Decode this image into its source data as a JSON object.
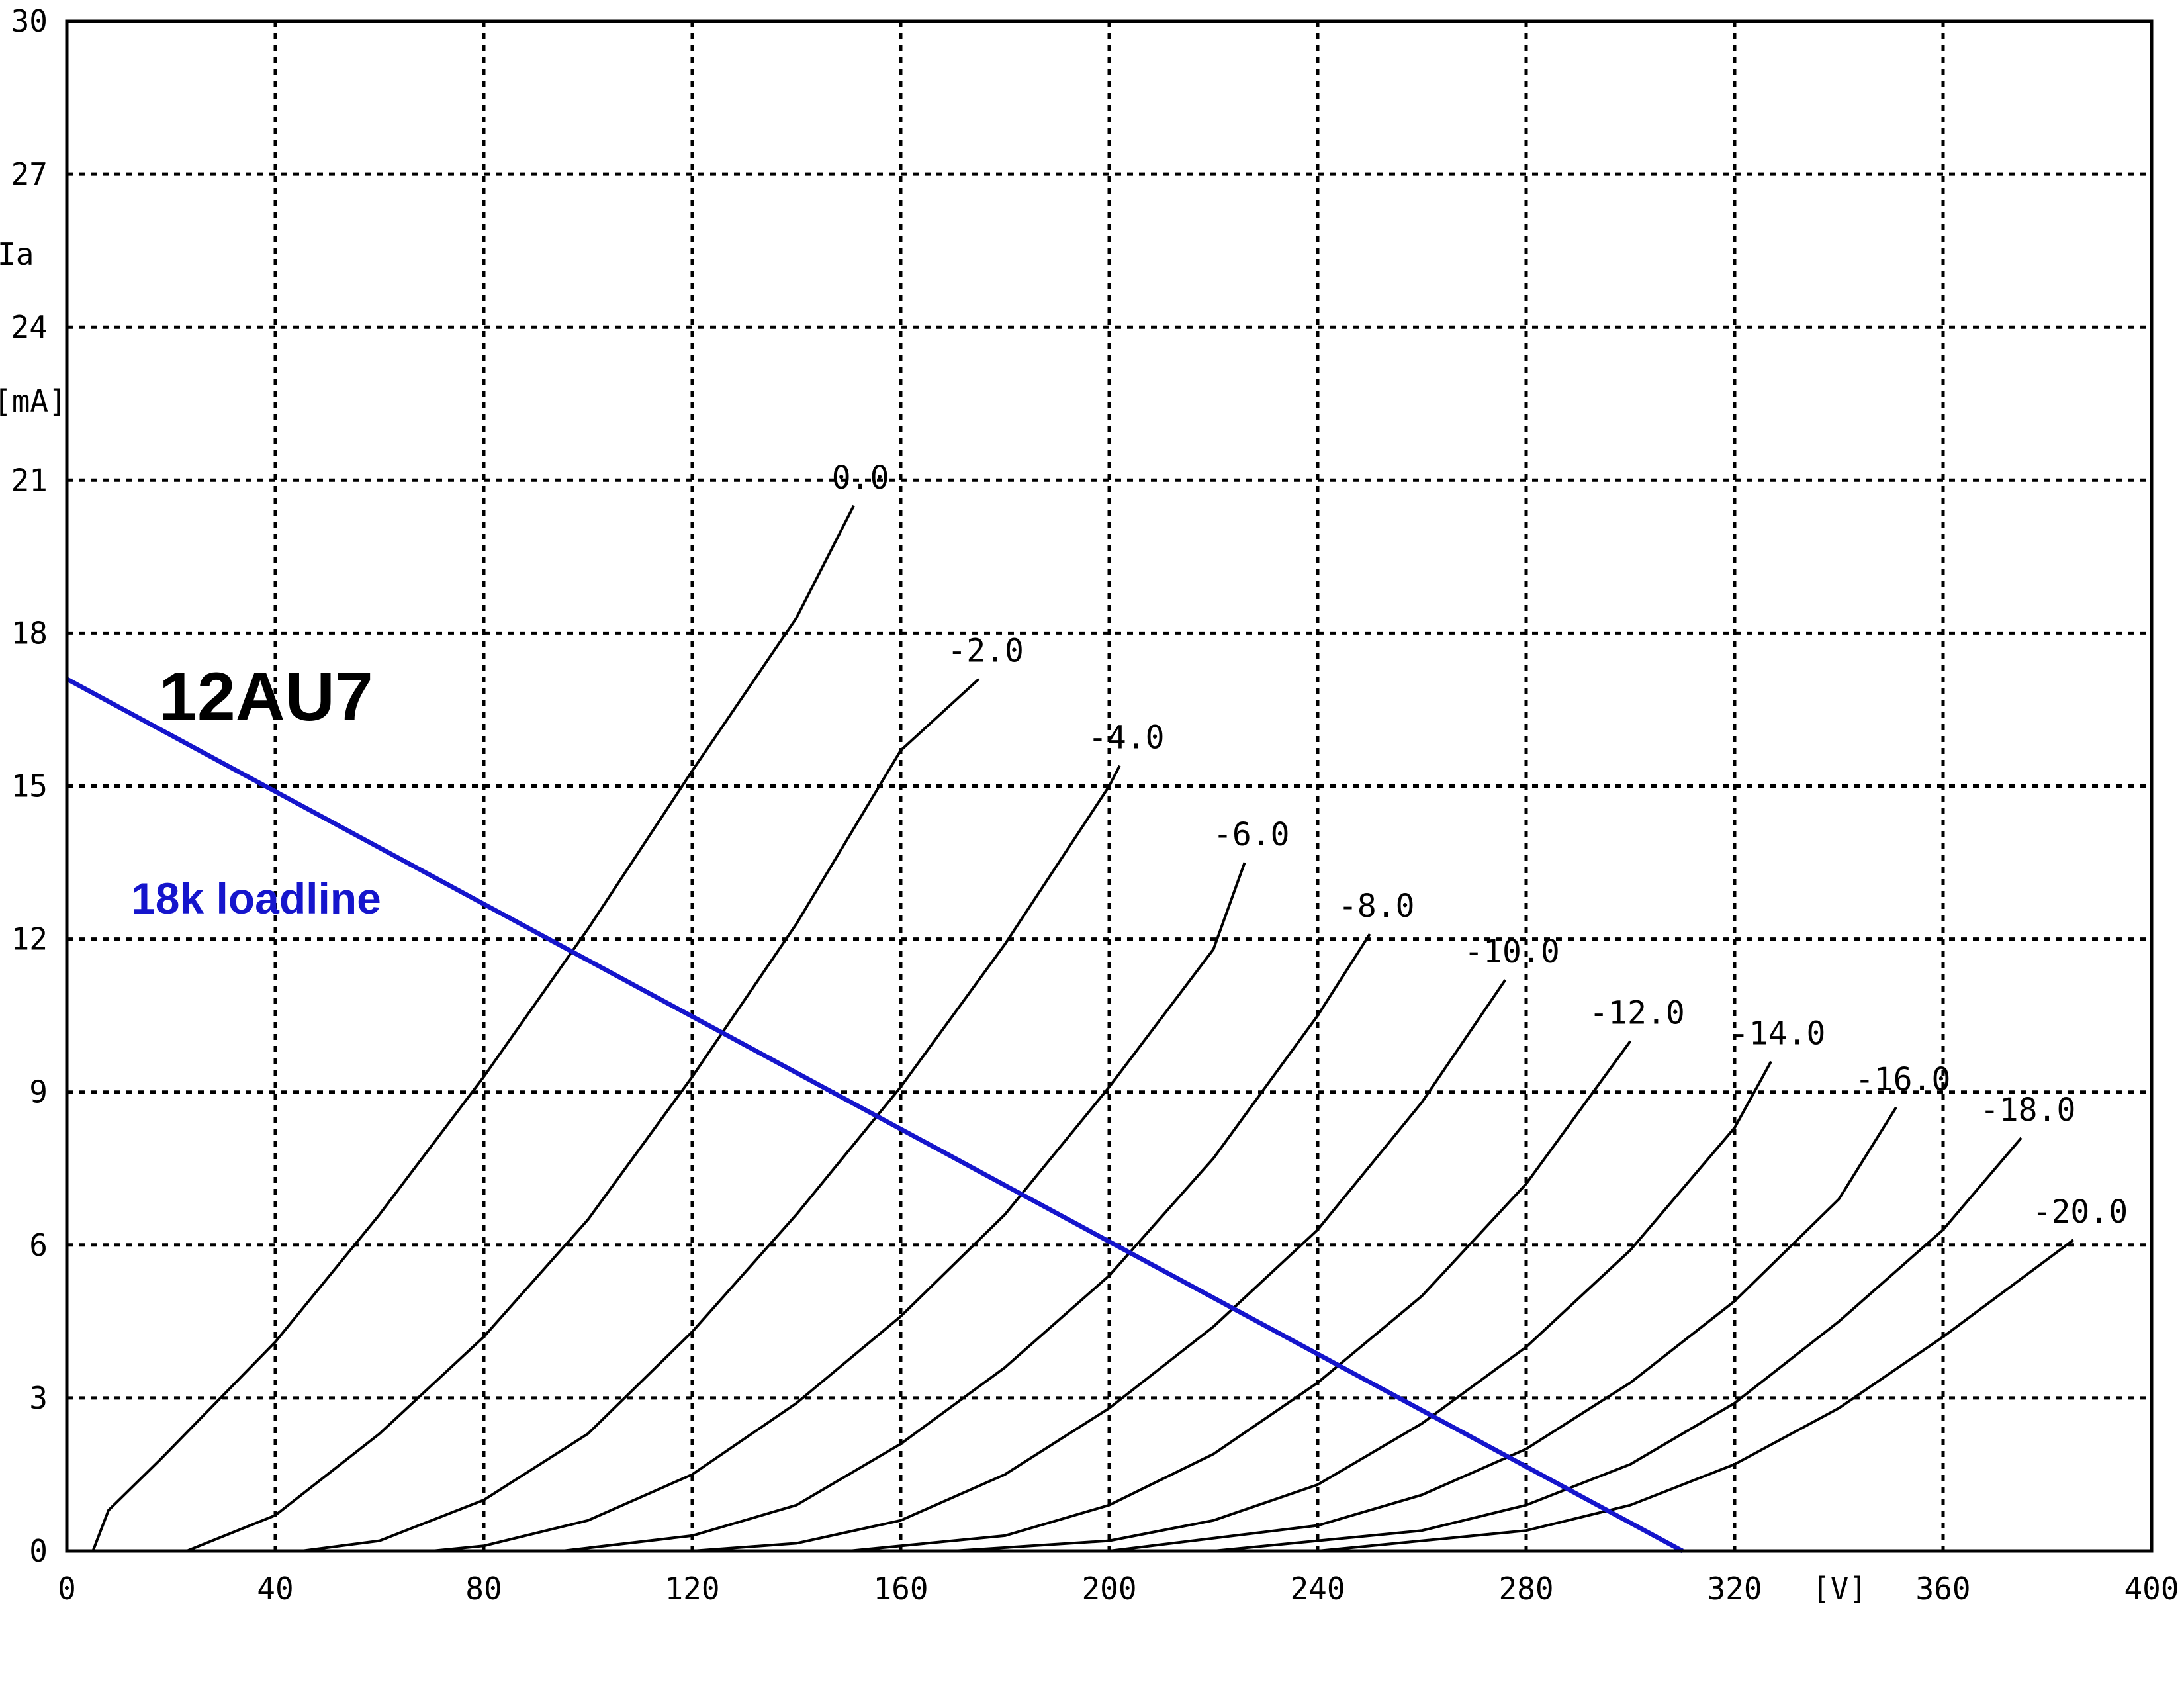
{
  "chart_data": {
    "type": "line",
    "title": "12AU7",
    "xlabel": "[V]",
    "ylabel": [
      "Ia",
      "[mA]"
    ],
    "xlim": [
      0,
      400
    ],
    "ylim": [
      0,
      30
    ],
    "grid": true,
    "x_ticks": [
      "0",
      "40",
      "80",
      "120",
      "160",
      "200",
      "240",
      "280",
      "320",
      "360",
      "400"
    ],
    "y_ticks": [
      "0",
      "3",
      "6",
      "9",
      "12",
      "15",
      "18",
      "21",
      "24",
      "27",
      "30"
    ],
    "series": [
      {
        "name": "0.0",
        "points": [
          [
            5,
            0
          ],
          [
            8,
            0.8
          ],
          [
            18,
            1.8
          ],
          [
            40,
            4.1
          ],
          [
            60,
            6.6
          ],
          [
            80,
            9.3
          ],
          [
            100,
            12.2
          ],
          [
            120,
            15.3
          ],
          [
            140,
            18.3
          ],
          [
            151,
            20.5
          ]
        ]
      },
      {
        "name": "-2.0",
        "points": [
          [
            23,
            0
          ],
          [
            40,
            0.7
          ],
          [
            60,
            2.3
          ],
          [
            80,
            4.2
          ],
          [
            100,
            6.5
          ],
          [
            120,
            9.3
          ],
          [
            140,
            12.3
          ],
          [
            160,
            15.7
          ],
          [
            175,
            17.1
          ]
        ]
      },
      {
        "name": "-4.0",
        "points": [
          [
            45,
            0
          ],
          [
            60,
            0.2
          ],
          [
            80,
            1.0
          ],
          [
            100,
            2.3
          ],
          [
            120,
            4.3
          ],
          [
            140,
            6.6
          ],
          [
            160,
            9.1
          ],
          [
            180,
            11.9
          ],
          [
            200,
            15.0
          ],
          [
            202,
            15.4
          ]
        ]
      },
      {
        "name": "-6.0",
        "points": [
          [
            70,
            0
          ],
          [
            80,
            0.1
          ],
          [
            100,
            0.6
          ],
          [
            120,
            1.5
          ],
          [
            140,
            2.9
          ],
          [
            160,
            4.6
          ],
          [
            180,
            6.6
          ],
          [
            200,
            9.1
          ],
          [
            220,
            11.8
          ],
          [
            226,
            13.5
          ]
        ]
      },
      {
        "name": "-8.0",
        "points": [
          [
            95,
            0
          ],
          [
            120,
            0.3
          ],
          [
            140,
            0.9
          ],
          [
            160,
            2.1
          ],
          [
            180,
            3.6
          ],
          [
            200,
            5.4
          ],
          [
            220,
            7.7
          ],
          [
            240,
            10.5
          ],
          [
            250,
            12.1
          ]
        ]
      },
      {
        "name": "-10.0",
        "points": [
          [
            120,
            0
          ],
          [
            140,
            0.15
          ],
          [
            160,
            0.6
          ],
          [
            180,
            1.5
          ],
          [
            200,
            2.8
          ],
          [
            220,
            4.4
          ],
          [
            240,
            6.3
          ],
          [
            260,
            8.8
          ],
          [
            276,
            11.2
          ]
        ]
      },
      {
        "name": "-12.0",
        "points": [
          [
            150,
            0
          ],
          [
            180,
            0.3
          ],
          [
            200,
            0.9
          ],
          [
            220,
            1.9
          ],
          [
            240,
            3.3
          ],
          [
            260,
            5.0
          ],
          [
            280,
            7.2
          ],
          [
            300,
            10.0
          ]
        ]
      },
      {
        "name": "-14.0",
        "points": [
          [
            170,
            0
          ],
          [
            200,
            0.2
          ],
          [
            220,
            0.6
          ],
          [
            240,
            1.3
          ],
          [
            260,
            2.5
          ],
          [
            280,
            4.0
          ],
          [
            300,
            5.9
          ],
          [
            320,
            8.3
          ],
          [
            327,
            9.6
          ]
        ]
      },
      {
        "name": "-16.0",
        "points": [
          [
            200,
            0
          ],
          [
            240,
            0.5
          ],
          [
            260,
            1.1
          ],
          [
            280,
            2.0
          ],
          [
            300,
            3.3
          ],
          [
            320,
            4.9
          ],
          [
            340,
            6.9
          ],
          [
            351,
            8.7
          ]
        ]
      },
      {
        "name": "-18.0",
        "points": [
          [
            220,
            0
          ],
          [
            260,
            0.4
          ],
          [
            280,
            0.9
          ],
          [
            300,
            1.7
          ],
          [
            320,
            2.9
          ],
          [
            340,
            4.5
          ],
          [
            360,
            6.3
          ],
          [
            375,
            8.1
          ]
        ]
      },
      {
        "name": "-20.0",
        "points": [
          [
            240,
            0
          ],
          [
            280,
            0.4
          ],
          [
            300,
            0.9
          ],
          [
            320,
            1.7
          ],
          [
            340,
            2.8
          ],
          [
            360,
            4.2
          ],
          [
            385,
            6.1
          ]
        ]
      }
    ],
    "loadline": {
      "name": "18k loadline",
      "color": "#1515cc",
      "points": [
        [
          0,
          17.1
        ],
        [
          310,
          0
        ]
      ]
    }
  }
}
